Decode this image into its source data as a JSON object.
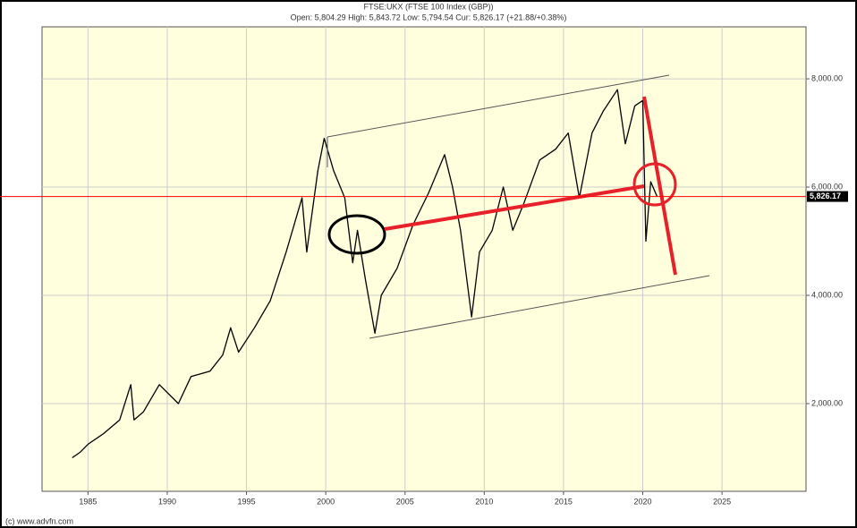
{
  "chart_data": {
    "type": "line",
    "title": "FTSE:UKX (FTSE 100 Index (GBP))",
    "subtitle": "Open: 5,804.29 High: 5,843.72 Low: 5,794.54 Cur: 5,826.17 (+21.88/+0.38%)",
    "footer": "(c) www.advfn.com",
    "x": [
      1984.0,
      1984.5,
      1985.0,
      1986.0,
      1987.0,
      1987.7,
      1987.9,
      1988.5,
      1989.5,
      1990.7,
      1991.5,
      1992.7,
      1993.5,
      1994.0,
      1994.5,
      1995.5,
      1996.5,
      1997.5,
      1998.5,
      1998.8,
      1999.5,
      1999.9,
      2000.5,
      2001.2,
      2001.7,
      2002.0,
      2002.5,
      2003.1,
      2003.5,
      2004.5,
      2005.5,
      2006.5,
      2007.5,
      2008.0,
      2008.5,
      2009.2,
      2009.7,
      2010.5,
      2011.2,
      2011.8,
      2012.5,
      2013.5,
      2014.5,
      2015.3,
      2016.0,
      2016.8,
      2017.5,
      2018.4,
      2018.9,
      2019.5,
      2020.0,
      2020.2,
      2020.5,
      2020.9
    ],
    "series": [
      {
        "name": "FTSE 100",
        "color": "#000000",
        "values": [
          1000,
          1100,
          1250,
          1450,
          1700,
          2350,
          1700,
          1850,
          2350,
          2000,
          2500,
          2600,
          2900,
          3400,
          2950,
          3400,
          3900,
          4800,
          5800,
          4800,
          6300,
          6900,
          6300,
          5800,
          4600,
          5200,
          4300,
          3300,
          4000,
          4500,
          5300,
          5900,
          6600,
          6000,
          5200,
          3600,
          4800,
          5200,
          6000,
          5200,
          5700,
          6500,
          6700,
          7000,
          5800,
          7000,
          7400,
          7800,
          6800,
          7500,
          7600,
          5000,
          6100,
          5826.17
        ]
      }
    ],
    "current": {
      "value": 5826.17,
      "label": "5,826.17",
      "color": "#ff0000"
    },
    "xlim": [
      1982.1,
      2030.3
    ],
    "ylim": [
      380,
      8960
    ],
    "xticks": [
      1985,
      1990,
      1995,
      2000,
      2005,
      2010,
      2015,
      2020,
      2025
    ],
    "yticks": [
      {
        "value": 2000,
        "label": "2,000.00"
      },
      {
        "value": 4000,
        "label": "4,000.00"
      },
      {
        "value": 6000,
        "label": "6,000.00"
      },
      {
        "value": 8000,
        "label": "8,000.00"
      }
    ],
    "grid": true
  }
}
